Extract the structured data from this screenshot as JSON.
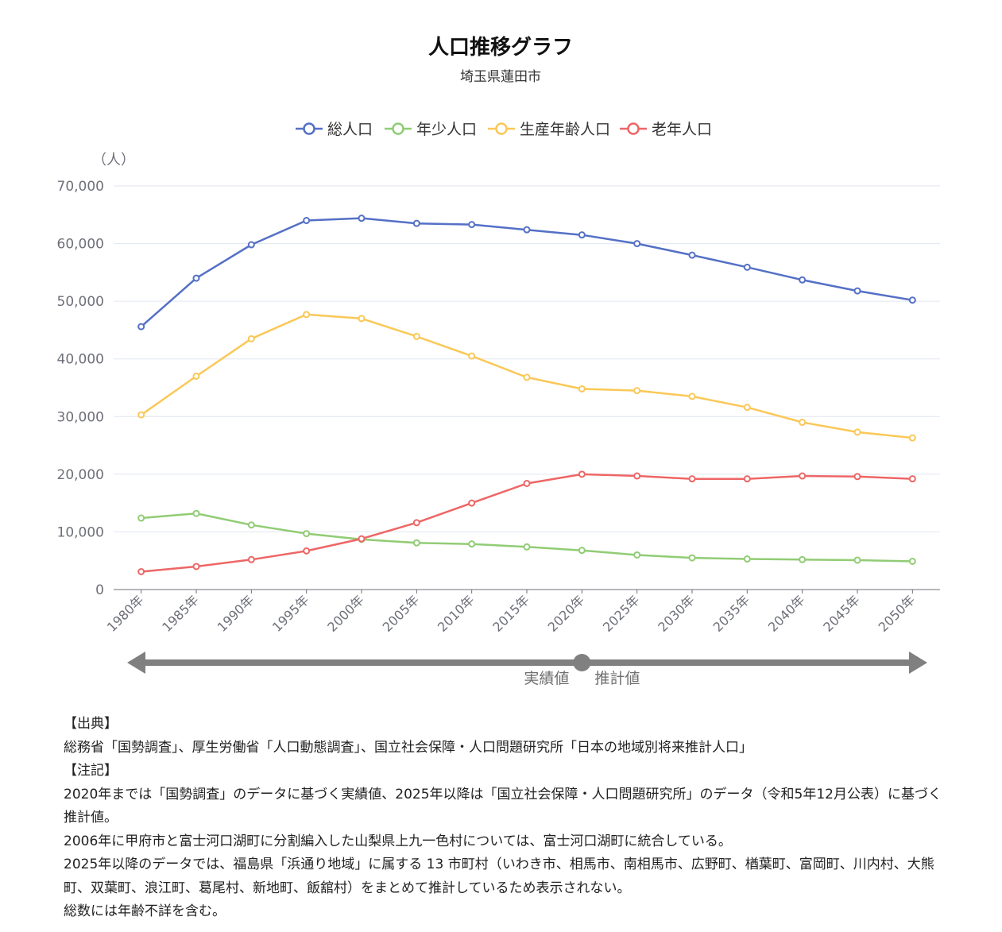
{
  "chart_data": {
    "type": "line",
    "title": "人口推移グラフ",
    "subtitle": "埼玉県蓮田市",
    "ylabel": "（人）",
    "ylim": [
      0,
      70000
    ],
    "yticks": [
      0,
      10000,
      20000,
      30000,
      40000,
      50000,
      60000,
      70000
    ],
    "ytick_labels": [
      "0",
      "10,000",
      "20,000",
      "30,000",
      "40,000",
      "50,000",
      "60,000",
      "70,000"
    ],
    "categories": [
      "1980年",
      "1985年",
      "1990年",
      "1995年",
      "2000年",
      "2005年",
      "2010年",
      "2015年",
      "2020年",
      "2025年",
      "2030年",
      "2035年",
      "2040年",
      "2045年",
      "2050年"
    ],
    "grid": true,
    "legend_position": "top-center",
    "series": [
      {
        "name": "総人口",
        "color": "#5470c6",
        "values": [
          45600,
          54000,
          59800,
          64000,
          64400,
          63500,
          63300,
          62400,
          61500,
          60000,
          58000,
          55900,
          53700,
          51800,
          50200
        ]
      },
      {
        "name": "年少人口",
        "color": "#91cc75",
        "values": [
          12400,
          13200,
          11200,
          9700,
          8700,
          8100,
          7900,
          7400,
          6800,
          6000,
          5500,
          5300,
          5200,
          5100,
          4900
        ]
      },
      {
        "name": "生産年齢人口",
        "color": "#fac858",
        "values": [
          30300,
          37000,
          43500,
          47700,
          47000,
          43900,
          40500,
          36800,
          34800,
          34500,
          33500,
          31600,
          29000,
          27300,
          26300
        ]
      },
      {
        "name": "老年人口",
        "color": "#ee6666",
        "values": [
          3100,
          4000,
          5200,
          6700,
          8800,
          11600,
          15000,
          18400,
          20000,
          19700,
          19200,
          19200,
          19700,
          19600,
          19200
        ]
      }
    ],
    "timeline": {
      "actual_label": "実績値",
      "estimate_label": "推計値",
      "boundary_index": 8,
      "color": "#808080"
    }
  },
  "notes": {
    "source_heading": "【出典】",
    "source_text": "総務省「国勢調査」、厚生労働省「人口動態調査」、国立社会保障・人口問題研究所「日本の地域別将来推計人口」",
    "notes_heading": "【注記】",
    "lines": [
      "2020年までは「国勢調査」のデータに基づく実績値、2025年以降は「国立社会保障・人口問題研究所」のデータ（令和5年12月公表）に基づく推計値。",
      "2006年に甲府市と富士河口湖町に分割編入した山梨県上九一色村については、富士河口湖町に統合している。",
      "2025年以降のデータでは、福島県「浜通り地域」に属する 13 市町村（いわき市、相馬市、南相馬市、広野町、楢葉町、富岡町、川内村、大熊町、双葉町、浪江町、葛尾村、新地町、飯舘村）をまとめて推計しているため表示されない。",
      "総数には年齢不詳を含む。"
    ]
  }
}
